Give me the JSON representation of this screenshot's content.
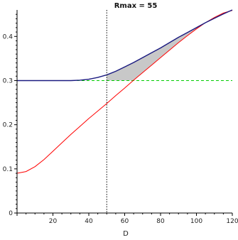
{
  "chart_data": {
    "type": "line",
    "title": "Rmax = 55",
    "xlabel": "D",
    "ylabel": "",
    "xlim": [
      0,
      120
    ],
    "ylim": [
      0,
      0.46
    ],
    "x_ticks": [
      "20",
      "40",
      "60",
      "80",
      "100",
      "120"
    ],
    "x_tick_values": [
      20,
      40,
      60,
      80,
      100,
      120
    ],
    "y_ticks": [
      "0",
      "0.1",
      "0.2",
      "0.3",
      "0.4"
    ],
    "y_tick_values": [
      0,
      0.1,
      0.2,
      0.3,
      0.4
    ],
    "vertical_line_x": 50,
    "series": [
      {
        "color": "#1a1a80",
        "style": "solid",
        "points": [
          [
            0,
            0.3
          ],
          [
            10,
            0.3
          ],
          [
            20,
            0.3
          ],
          [
            30,
            0.3
          ],
          [
            35,
            0.301
          ],
          [
            40,
            0.303
          ],
          [
            45,
            0.307
          ],
          [
            50,
            0.313
          ],
          [
            55,
            0.321
          ],
          [
            60,
            0.331
          ],
          [
            65,
            0.341
          ],
          [
            70,
            0.352
          ],
          [
            75,
            0.363
          ],
          [
            80,
            0.374
          ],
          [
            85,
            0.386
          ],
          [
            90,
            0.398
          ],
          [
            95,
            0.409
          ],
          [
            100,
            0.42
          ],
          [
            105,
            0.431
          ],
          [
            110,
            0.441
          ],
          [
            115,
            0.451
          ],
          [
            120,
            0.46
          ]
        ]
      },
      {
        "color": "#ff0000",
        "style": "solid",
        "points": [
          [
            0,
            0.09
          ],
          [
            5,
            0.094
          ],
          [
            10,
            0.105
          ],
          [
            15,
            0.121
          ],
          [
            20,
            0.14
          ],
          [
            25,
            0.159
          ],
          [
            30,
            0.178
          ],
          [
            35,
            0.196
          ],
          [
            40,
            0.214
          ],
          [
            45,
            0.231
          ],
          [
            50,
            0.248
          ],
          [
            55,
            0.266
          ],
          [
            60,
            0.283
          ],
          [
            65,
            0.301
          ],
          [
            70,
            0.318
          ],
          [
            75,
            0.335
          ],
          [
            80,
            0.352
          ],
          [
            85,
            0.369
          ],
          [
            90,
            0.386
          ],
          [
            95,
            0.402
          ],
          [
            100,
            0.417
          ],
          [
            105,
            0.431
          ],
          [
            110,
            0.443
          ],
          [
            115,
            0.453
          ],
          [
            120,
            0.459
          ]
        ]
      },
      {
        "color": "#00cc00",
        "style": "dashed",
        "points": [
          [
            0,
            0.3
          ],
          [
            120,
            0.3
          ]
        ]
      }
    ],
    "shaded_region": {
      "color": "#c8c8c8",
      "x_from": 50,
      "upper": "series 1 (blue curve)",
      "lower": "max(series 2 (red curve), 0.3)"
    },
    "colors": {
      "axis": "#000000",
      "vline": "#000000",
      "shade": "#c8c8c8"
    }
  }
}
